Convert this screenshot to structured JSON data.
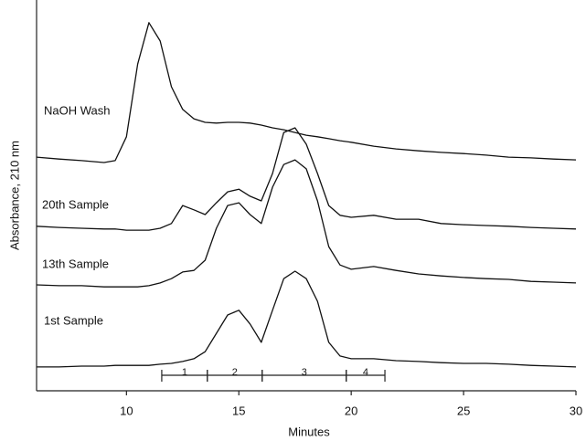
{
  "chart_data": {
    "type": "line",
    "x_label": "Minutes",
    "y_label": "Absorbance, 210 nm",
    "xlim": [
      6,
      30
    ],
    "xticks": [
      10,
      15,
      20,
      25,
      30
    ],
    "ylim": [
      0,
      100
    ],
    "x": [
      6,
      7,
      8,
      9,
      9.5,
      10,
      10.5,
      11,
      11.5,
      12,
      12.5,
      13,
      13.5,
      14,
      14.5,
      15,
      15.5,
      16,
      16.5,
      17,
      17.5,
      18,
      18.5,
      19,
      19.5,
      20,
      21,
      22,
      23,
      24,
      25,
      26,
      27,
      28,
      29,
      30
    ],
    "series": [
      {
        "name": "NaOH Wash",
        "color": "#111111",
        "values": [
          59.8,
          59.3,
          58.9,
          58.4,
          58.9,
          65.0,
          83.6,
          94.2,
          89.5,
          77.8,
          72.0,
          69.6,
          68.7,
          68.5,
          68.7,
          68.7,
          68.5,
          68.0,
          67.3,
          66.8,
          66.1,
          65.4,
          65.0,
          64.5,
          64.0,
          63.6,
          62.6,
          61.9,
          61.4,
          61.0,
          60.7,
          60.3,
          59.8,
          59.6,
          59.3,
          59.1
        ]
      },
      {
        "name": "20th Sample",
        "color": "#111111",
        "values": [
          42.1,
          41.8,
          41.6,
          41.4,
          41.4,
          41.1,
          41.1,
          41.1,
          41.6,
          42.8,
          47.4,
          46.3,
          45.1,
          48.1,
          50.9,
          51.6,
          49.8,
          48.6,
          55.6,
          66.1,
          67.3,
          63.1,
          55.6,
          47.4,
          44.9,
          44.4,
          44.9,
          43.9,
          43.9,
          42.8,
          42.5,
          42.3,
          42.1,
          41.8,
          41.6,
          41.4
        ]
      },
      {
        "name": "13th Sample",
        "color": "#111111",
        "values": [
          27.1,
          26.9,
          26.9,
          26.6,
          26.6,
          26.6,
          26.6,
          26.9,
          27.6,
          28.7,
          30.4,
          30.8,
          33.4,
          41.6,
          47.4,
          48.1,
          45.1,
          42.8,
          52.1,
          57.9,
          59.1,
          56.8,
          48.6,
          36.9,
          32.2,
          31.1,
          31.8,
          30.8,
          29.9,
          29.4,
          29.0,
          28.7,
          28.5,
          28.0,
          27.8,
          27.6
        ]
      },
      {
        "name": "1st Sample",
        "color": "#111111",
        "values": [
          6.1,
          6.1,
          6.3,
          6.3,
          6.5,
          6.5,
          6.5,
          6.5,
          6.8,
          7.0,
          7.5,
          8.2,
          10.0,
          14.7,
          19.4,
          20.6,
          17.1,
          12.4,
          20.6,
          28.7,
          30.6,
          28.7,
          22.9,
          12.4,
          8.9,
          8.2,
          8.2,
          7.7,
          7.5,
          7.2,
          7.0,
          7.0,
          6.8,
          6.5,
          6.3,
          6.1
        ]
      }
    ],
    "fractions": [
      {
        "label": "1",
        "start": 11.57,
        "end": 13.6
      },
      {
        "label": "2",
        "start": 13.6,
        "end": 16.04
      },
      {
        "label": "3",
        "start": 16.04,
        "end": 19.78
      },
      {
        "label": "4",
        "start": 19.78,
        "end": 21.5
      }
    ]
  }
}
